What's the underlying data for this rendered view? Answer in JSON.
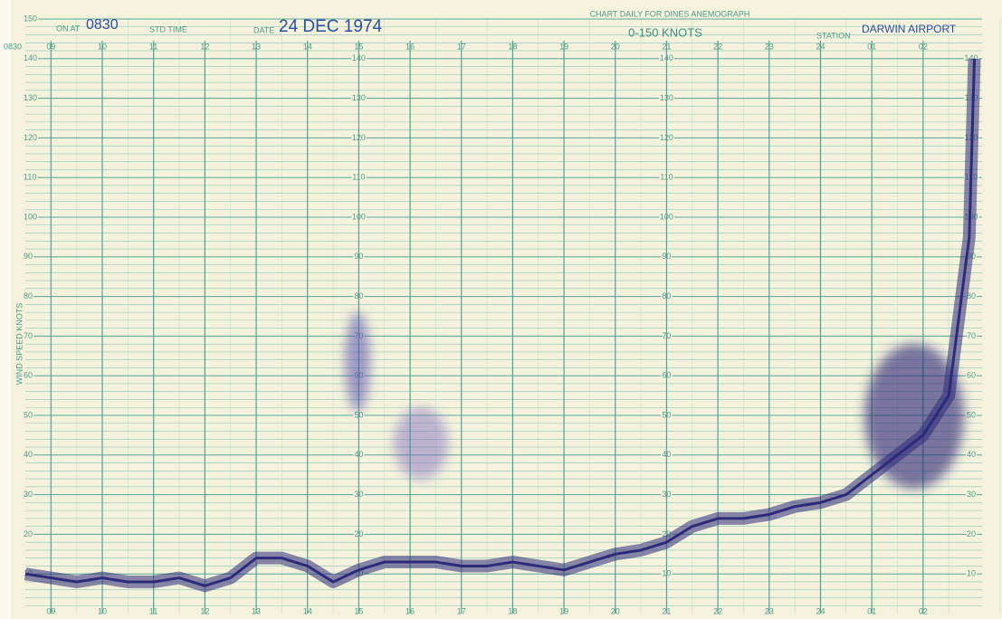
{
  "chart_data": {
    "type": "line",
    "title": "CHART DAILY FOR DINES ANEMOGRAPH",
    "subtitle": "0-150 KNOTS",
    "on_at_label": "ON AT",
    "on_at": "0830",
    "time_label": "STD TIME",
    "date_label": "DATE",
    "date": "24 DEC 1974",
    "station_label": "STATION",
    "station": "DARWIN AIRPORT",
    "y_label": "WIND SPEED KNOTS",
    "x_start_label": "0830",
    "color": "#2e2a7a",
    "grid": true,
    "x": [
      8.5,
      9,
      9.5,
      10,
      10.5,
      11,
      11.5,
      12,
      12.5,
      13,
      13.5,
      14,
      14.5,
      15,
      15.5,
      16,
      16.5,
      17,
      17.5,
      18,
      18.5,
      19,
      19.5,
      20,
      20.5,
      21,
      21.5,
      22,
      22.5,
      23,
      23.5,
      24,
      24.5,
      25,
      25.5,
      26,
      26.5,
      26.9,
      27
    ],
    "values": [
      10,
      9,
      8,
      9,
      8,
      8,
      9,
      7,
      9,
      14,
      14,
      12,
      8,
      11,
      13,
      13,
      13,
      12,
      12,
      13,
      12,
      11,
      13,
      15,
      16,
      18,
      22,
      24,
      24,
      25,
      27,
      28,
      30,
      35,
      40,
      45,
      55,
      95,
      140
    ],
    "xlim": [
      8.5,
      27.15
    ],
    "xticks": [
      {
        "value": 9,
        "label": "09"
      },
      10,
      11,
      12,
      13,
      14,
      15,
      16,
      17,
      18,
      19,
      20,
      21,
      22,
      23,
      24,
      {
        "value": 25,
        "label": "01"
      },
      {
        "value": 26,
        "label": "02"
      }
    ],
    "ylim": [
      0,
      150
    ],
    "yticks": [
      10,
      20,
      30,
      40,
      50,
      60,
      70,
      80,
      90,
      100,
      110,
      120,
      130,
      140,
      150
    ]
  }
}
